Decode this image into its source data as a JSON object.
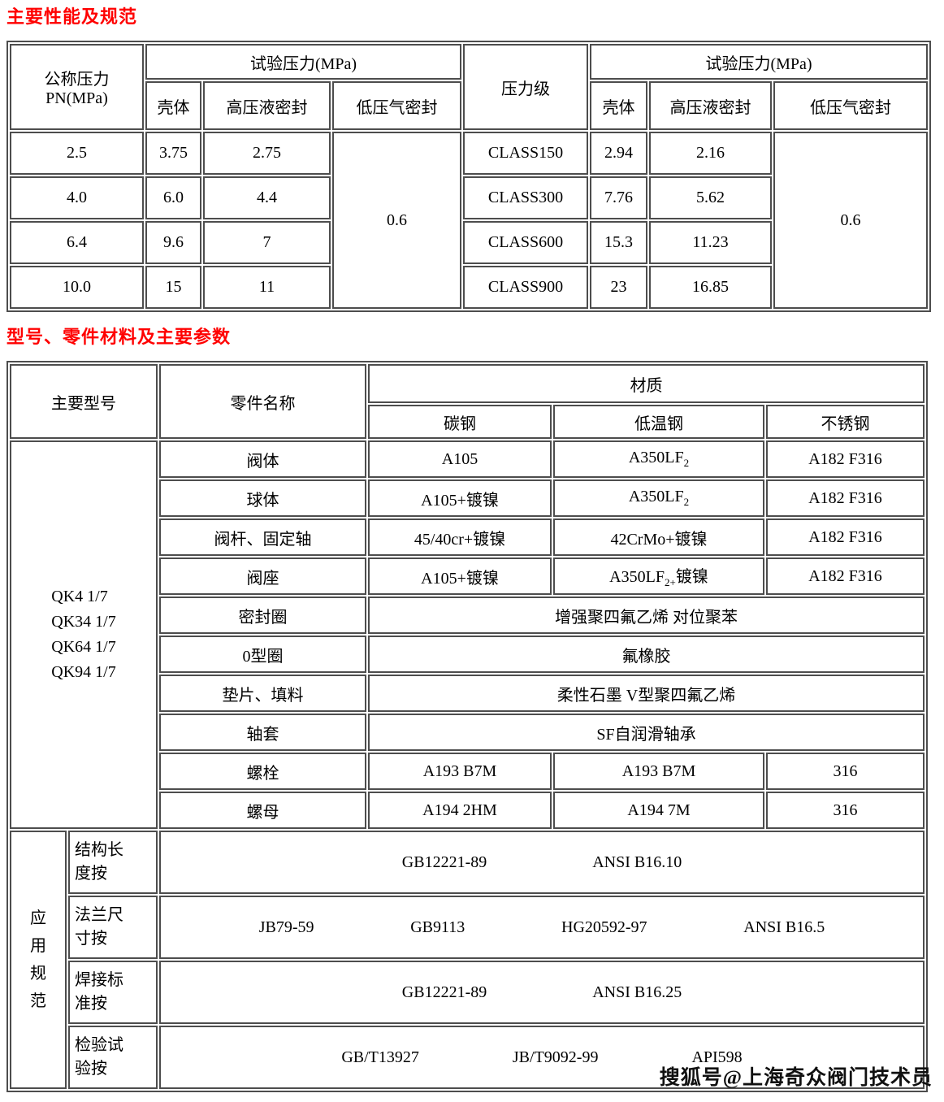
{
  "headings": {
    "performance": "主要性能及规范",
    "materials": "型号、零件材料及主要参数"
  },
  "colors": {
    "heading": "#ff0000",
    "border": "#4d4d4d",
    "text": "#000000"
  },
  "table1": {
    "header": {
      "nominal": "公称压力\nPN(MPa)",
      "test_pressure": "试验压力(MPa)",
      "shell": "壳体",
      "high_seal": "高压液密封",
      "low_seal": "低压气密封",
      "pressure_class": "压力级"
    },
    "left": {
      "rows": [
        [
          "2.5",
          "3.75",
          "2.75"
        ],
        [
          "4.0",
          "6.0",
          "4.4"
        ],
        [
          "6.4",
          "9.6",
          "7"
        ],
        [
          "10.0",
          "15",
          "11"
        ]
      ],
      "air_seal": "0.6"
    },
    "right": {
      "rows": [
        [
          "CLASS150",
          "2.94",
          "2.16"
        ],
        [
          "CLASS300",
          "7.76",
          "5.62"
        ],
        [
          "CLASS600",
          "15.3",
          "11.23"
        ],
        [
          "CLASS900",
          "23",
          "16.85"
        ]
      ],
      "air_seal": "0.6"
    }
  },
  "table2": {
    "header": {
      "model": "主要型号",
      "part": "零件名称",
      "material": "材质",
      "carbon": "碳钢",
      "low_temp": "低温钢",
      "stainless": "不锈钢"
    },
    "models": "QK4 1/7\nQK34 1/7\nQK64 1/7\nQK94 1/7",
    "rows": [
      {
        "part": "阀体",
        "carbon": "A105",
        "low_temp": "A350LF~2~",
        "stainless": "A182 F316"
      },
      {
        "part": "球体",
        "carbon": "A105+镀镍",
        "low_temp": "A350LF~2~",
        "stainless": "A182 F316"
      },
      {
        "part": "阀杆、固定轴",
        "carbon": "45/40cr+镀镍",
        "low_temp": "42CrMo+镀镍",
        "stainless": "A182 F316"
      },
      {
        "part": "阀座",
        "carbon": "A105+镀镍",
        "low_temp": "A350LF~2+~镀镍",
        "stainless": "A182 F316"
      }
    ],
    "span_rows": [
      {
        "part": "密封圈",
        "value": "增强聚四氟乙烯 对位聚苯"
      },
      {
        "part": "0型圈",
        "value": "氟橡胶"
      },
      {
        "part": "垫片、填料",
        "value": "柔性石墨 V型聚四氟乙烯"
      },
      {
        "part": "轴套",
        "value": "SF自润滑轴承"
      }
    ],
    "bolt_rows": [
      {
        "part": "螺栓",
        "carbon": "A193 B7M",
        "low_temp": "A193 B7M",
        "stainless": "316"
      },
      {
        "part": "螺母",
        "carbon": "A194 2HM",
        "low_temp": "A194 7M",
        "stainless": "316"
      }
    ],
    "application": {
      "side_label": "应\n用\n规\n范",
      "rows": [
        {
          "label": "结构长\n度按",
          "items": [
            "GB12221-89",
            "ANSI B16.10"
          ]
        },
        {
          "label": "法兰尺\n寸按",
          "items": [
            "JB79-59",
            "GB9113",
            "HG20592-97",
            "ANSI B16.5"
          ]
        },
        {
          "label": "焊接标\n准按",
          "items": [
            "GB12221-89",
            "ANSI B16.25"
          ]
        },
        {
          "label": "检验试\n验按",
          "items": [
            "GB/T13927",
            "JB/T9092-99",
            "API598"
          ]
        }
      ]
    }
  },
  "watermark": "搜狐号@上海奇众阀门技术员"
}
